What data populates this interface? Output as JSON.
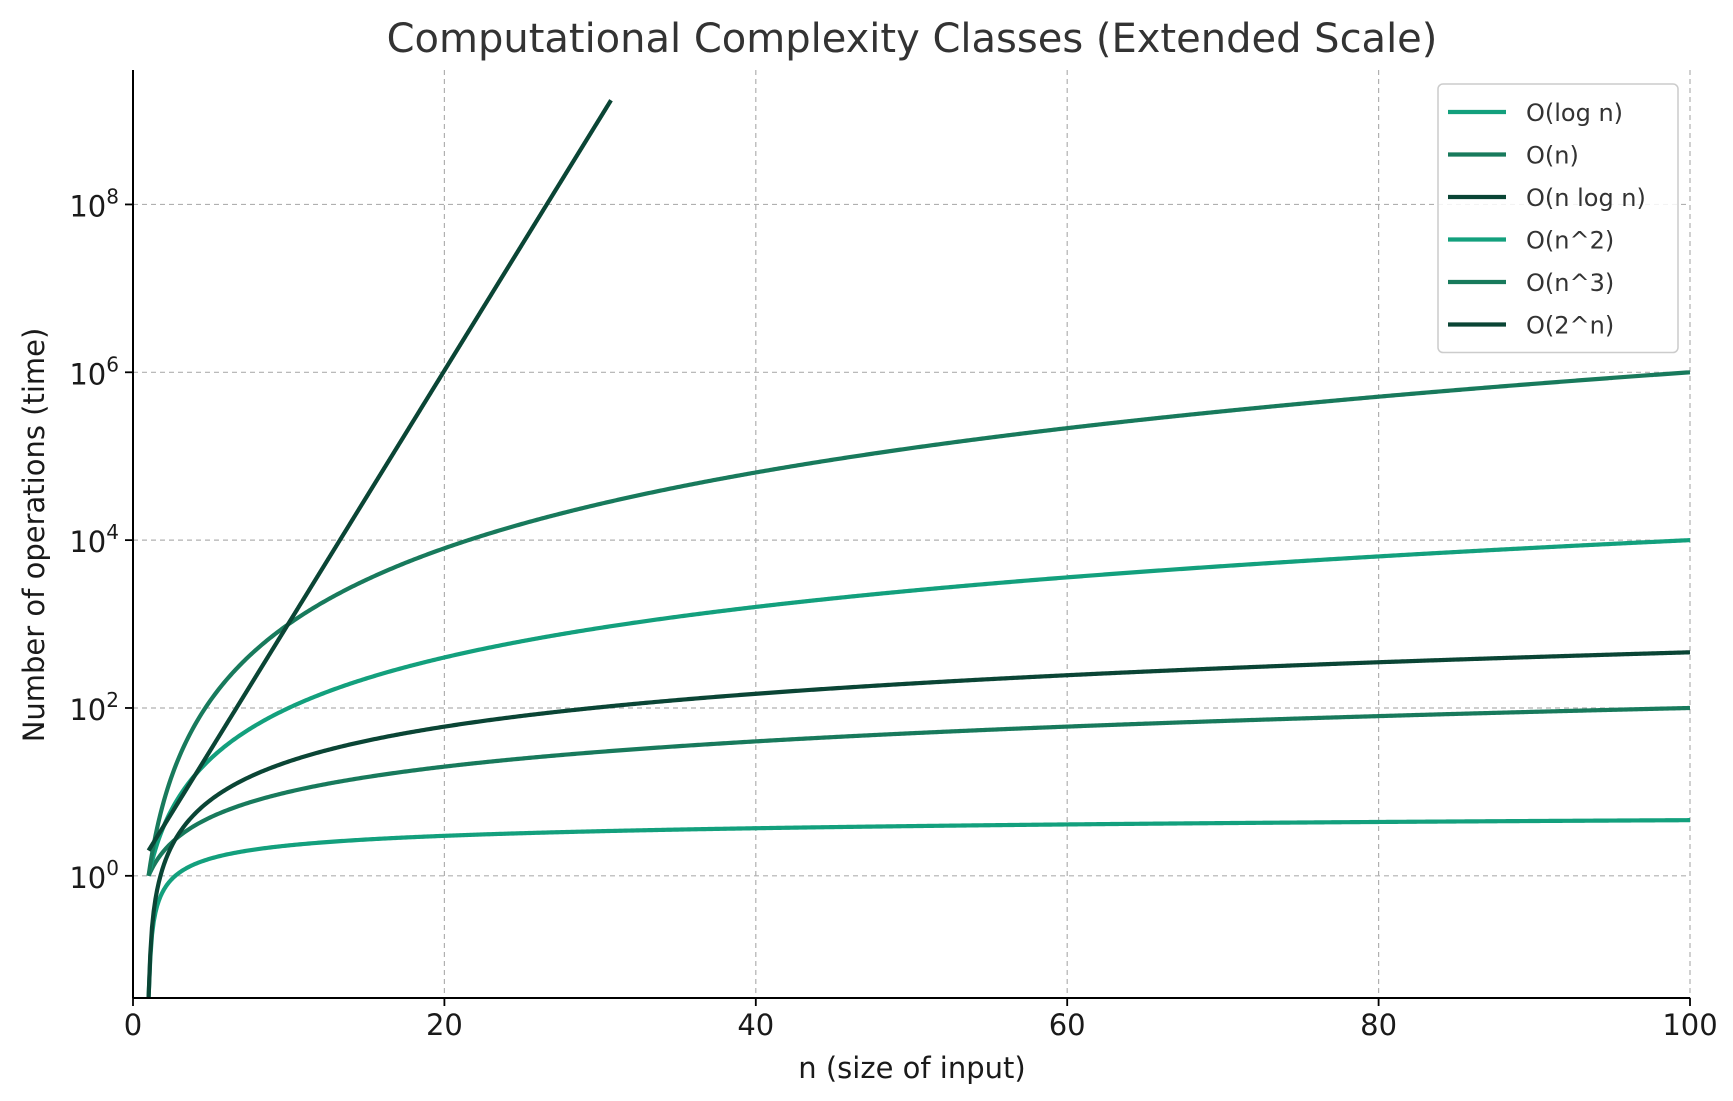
{
  "chart_data": {
    "type": "line",
    "title": "Computational Complexity Classes (Extended Scale)",
    "xlabel": "n (size of input)",
    "ylabel": "Number of operations (time)",
    "xlim": [
      0,
      100
    ],
    "ylim": [
      0.035,
      4000000000
    ],
    "yscale": "log",
    "grid": true,
    "legend_position": "top-right",
    "x_ticks": [
      {
        "value": 0,
        "label": "0"
      },
      {
        "value": 20,
        "label": "20"
      },
      {
        "value": 40,
        "label": "40"
      },
      {
        "value": 60,
        "label": "60"
      },
      {
        "value": 80,
        "label": "80"
      },
      {
        "value": 100,
        "label": "100"
      }
    ],
    "y_ticks": [
      {
        "value": 1,
        "base": "10",
        "exp": "0"
      },
      {
        "value": 100,
        "base": "10",
        "exp": "2"
      },
      {
        "value": 10000,
        "base": "10",
        "exp": "4"
      },
      {
        "value": 1000000,
        "base": "10",
        "exp": "6"
      },
      {
        "value": 100000000,
        "base": "10",
        "exp": "8"
      }
    ],
    "series": [
      {
        "name": "O(log n)",
        "color": "#13a07d",
        "x": [
          1,
          1.05,
          1.1,
          1.2,
          1.4,
          1.7,
          2,
          3,
          5,
          10,
          20,
          40,
          60,
          80,
          100
        ],
        "y": [
          0.035,
          0.049,
          0.095,
          0.18,
          0.34,
          0.53,
          0.69,
          1.1,
          1.61,
          2.3,
          3.0,
          3.69,
          4.09,
          4.38,
          4.6
        ]
      },
      {
        "name": "O(n)",
        "color": "#187a5c",
        "x": [
          1,
          2,
          3,
          5,
          10,
          20,
          40,
          60,
          80,
          100
        ],
        "y": [
          1,
          2,
          3,
          5,
          10,
          20,
          40,
          60,
          80,
          100
        ]
      },
      {
        "name": "O(n log n)",
        "color": "#0a4535",
        "x": [
          1,
          1.05,
          1.1,
          1.2,
          1.4,
          1.7,
          2,
          3,
          5,
          10,
          20,
          40,
          60,
          80,
          100
        ],
        "y": [
          0.035,
          0.051,
          0.105,
          0.22,
          0.47,
          0.9,
          1.39,
          3.3,
          8.05,
          23,
          60,
          148,
          246,
          351,
          461
        ]
      },
      {
        "name": "O(n^2)",
        "color": "#13a07d",
        "x": [
          1,
          2,
          3,
          5,
          10,
          20,
          40,
          60,
          80,
          100
        ],
        "y": [
          1,
          4,
          9,
          25,
          100,
          400,
          1600,
          3600,
          6400,
          10000
        ]
      },
      {
        "name": "O(n^3)",
        "color": "#187a5c",
        "x": [
          1,
          2,
          3,
          5,
          10,
          20,
          40,
          60,
          80,
          100
        ],
        "y": [
          1,
          8,
          27,
          125,
          1000,
          8000,
          64000,
          216000,
          512000,
          1000000
        ]
      },
      {
        "name": "O(2^n)",
        "color": "#0a4535",
        "x": [
          1,
          10,
          20,
          30.7
        ],
        "y": [
          2,
          1024,
          1048576,
          1750000000
        ]
      }
    ]
  }
}
